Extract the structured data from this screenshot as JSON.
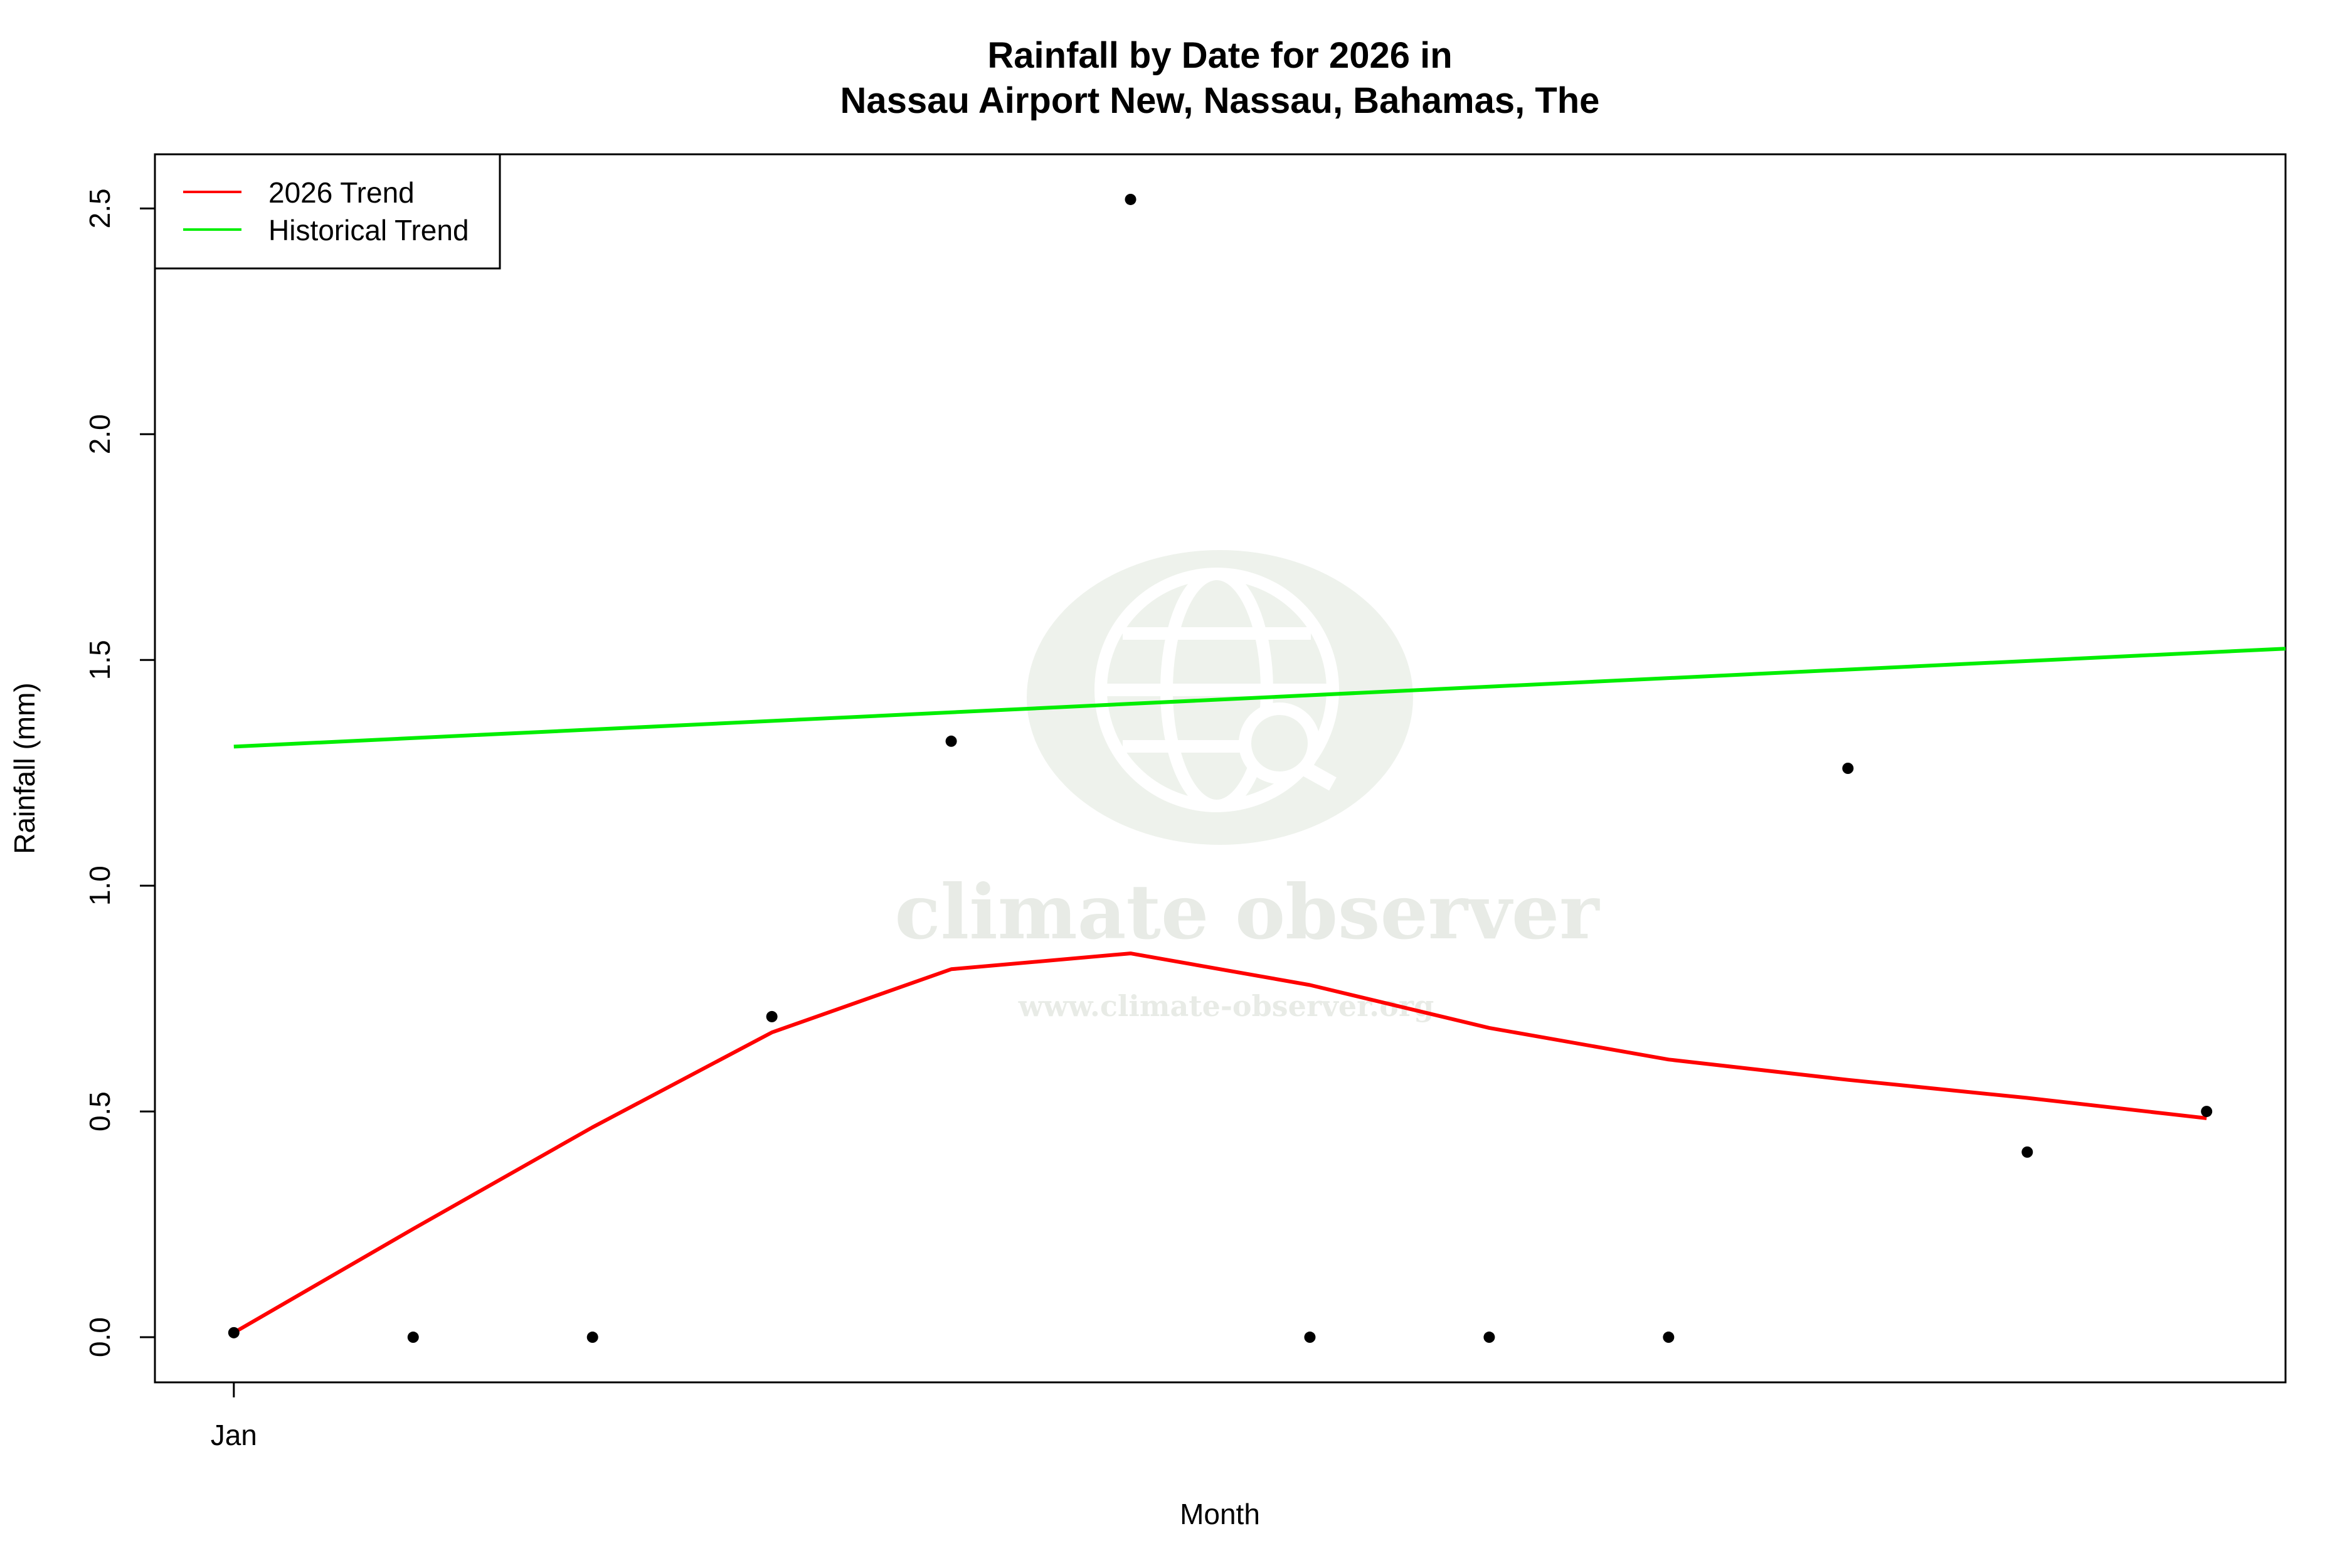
{
  "chart_data": {
    "type": "scatter",
    "title_line1": "Rainfall by Date for 2026 in",
    "title_line2": "Nassau Airport New, Nassau, Bahamas, The",
    "xlabel": "Month",
    "ylabel": "Rainfall (mm)",
    "x_tick_labels": [
      {
        "x": 1,
        "label": "Jan"
      }
    ],
    "xlim": [
      0.56,
      12.44
    ],
    "ylim": [
      -0.1,
      2.62
    ],
    "y_ticks": [
      {
        "value": 0.0,
        "label": "0.0"
      },
      {
        "value": 0.5,
        "label": "0.5"
      },
      {
        "value": 1.0,
        "label": "1.0"
      },
      {
        "value": 1.5,
        "label": "1.5"
      },
      {
        "value": 2.0,
        "label": "2.0"
      },
      {
        "value": 2.5,
        "label": "2.5"
      }
    ],
    "points": {
      "x": [
        1,
        2,
        3,
        4,
        5,
        6,
        7,
        8,
        9,
        10,
        11,
        12
      ],
      "y": [
        0.01,
        0.0,
        0.0,
        0.71,
        1.32,
        2.52,
        0.0,
        0.0,
        0.0,
        1.26,
        0.41,
        0.5
      ]
    },
    "series": [
      {
        "name": "2026 Trend",
        "color": "#ff0000",
        "x": [
          1,
          2,
          3,
          4,
          5,
          6,
          7,
          8,
          9,
          10,
          11,
          12
        ],
        "y": [
          0.01,
          0.24,
          0.465,
          0.675,
          0.815,
          0.85,
          0.78,
          0.685,
          0.615,
          0.57,
          0.53,
          0.485
        ]
      },
      {
        "name": "Historical Trend",
        "color": "#00ee00",
        "x": [
          1,
          12.44
        ],
        "y": [
          1.308,
          1.525
        ]
      }
    ],
    "legend": {
      "position": "top-left"
    },
    "grid": false
  },
  "watermark": {
    "name": "climate observer",
    "url": "www.climate-observer.org",
    "icon": "globe-search-icon"
  }
}
